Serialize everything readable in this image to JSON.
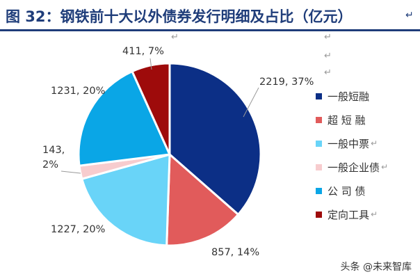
{
  "title": "图 32：钢铁前十大以外债券发行明细及占比（亿元）",
  "title_mark": "↵",
  "watermark": "头条 @未来智库",
  "chart_data": {
    "type": "pie",
    "title": "",
    "slices": [
      {
        "name": "一般短融",
        "value": 2219,
        "percent": "37%",
        "label": "2219, 37%",
        "color": "#0c2f86"
      },
      {
        "name": "超短融",
        "value": 857,
        "percent": "14%",
        "label": "857, 14%",
        "color": "#e15b5b"
      },
      {
        "name": "一般中票",
        "value": 1227,
        "percent": "20%",
        "label": "1227, 20%",
        "color": "#69d4f8"
      },
      {
        "name": "一般企业债",
        "value": 143,
        "percent": "2%",
        "label": "143, 2%",
        "color": "#f7ccce"
      },
      {
        "name": "公司债",
        "value": 1231,
        "percent": "20%",
        "label": "1231, 20%",
        "color": "#0aa6e6"
      },
      {
        "name": "定向工具",
        "value": 411,
        "percent": "7%",
        "label": "411, 7%",
        "color": "#9e0b0b"
      }
    ],
    "legend_labels": [
      "一般短融",
      "超 短 融",
      "一般中票",
      "一般企业债",
      "公 司 债",
      "定向工具"
    ],
    "legend_placement": "right"
  }
}
